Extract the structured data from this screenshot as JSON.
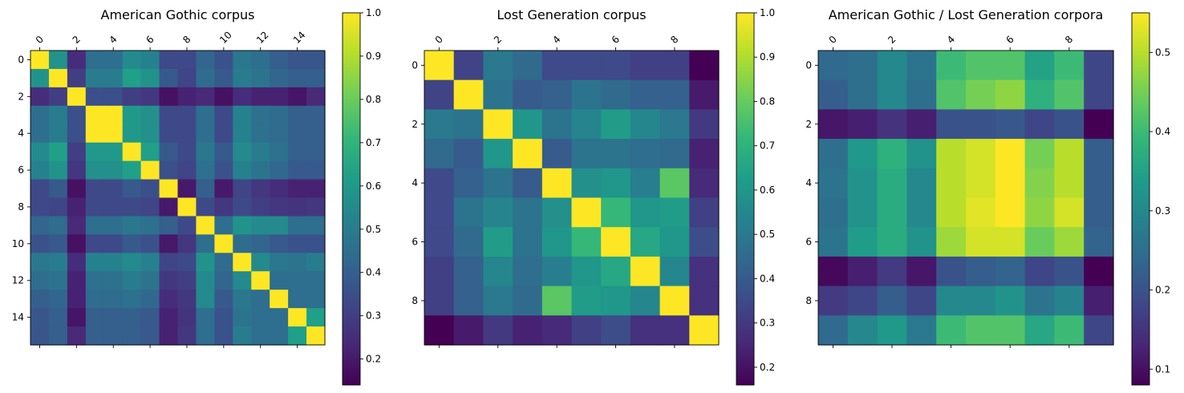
{
  "chart_data": [
    {
      "type": "heatmap",
      "title": "American Gothic corpus",
      "size": 16,
      "x_ticks": [
        0,
        2,
        4,
        6,
        8,
        10,
        12,
        14
      ],
      "y_ticks": [
        0,
        2,
        4,
        6,
        8,
        10,
        12,
        14
      ],
      "x_tick_labels": [
        "0",
        "2",
        "4",
        "6",
        "8",
        "10",
        "12",
        "14"
      ],
      "y_tick_labels": [
        "0",
        "2",
        "4",
        "6",
        "8",
        "10",
        "12",
        "14"
      ],
      "colorbar": {
        "min": 0.14,
        "max": 1.0,
        "ticks": [
          0.2,
          0.3,
          0.4,
          0.5,
          0.6,
          0.7,
          0.8,
          0.9,
          1.0
        ],
        "tick_labels": [
          "0.2",
          "0.3",
          "0.4",
          "0.5",
          "0.6",
          "0.7",
          "0.8",
          "0.9",
          "1.0"
        ]
      },
      "colormap": "viridis",
      "matrix": [
        [
          1.0,
          0.58,
          0.25,
          0.45,
          0.45,
          0.55,
          0.52,
          0.33,
          0.33,
          0.42,
          0.36,
          0.48,
          0.45,
          0.4,
          0.37,
          0.37
        ],
        [
          0.58,
          1.0,
          0.3,
          0.5,
          0.5,
          0.62,
          0.58,
          0.38,
          0.32,
          0.44,
          0.38,
          0.5,
          0.47,
          0.42,
          0.4,
          0.4
        ],
        [
          0.25,
          0.3,
          1.0,
          0.35,
          0.35,
          0.3,
          0.28,
          0.18,
          0.22,
          0.24,
          0.18,
          0.25,
          0.22,
          0.22,
          0.19,
          0.24
        ],
        [
          0.45,
          0.5,
          0.35,
          1.0,
          1.0,
          0.6,
          0.57,
          0.33,
          0.33,
          0.45,
          0.33,
          0.52,
          0.46,
          0.44,
          0.4,
          0.4
        ],
        [
          0.45,
          0.5,
          0.35,
          1.0,
          1.0,
          0.6,
          0.57,
          0.33,
          0.33,
          0.45,
          0.33,
          0.52,
          0.46,
          0.44,
          0.4,
          0.4
        ],
        [
          0.55,
          0.62,
          0.3,
          0.6,
          0.6,
          1.0,
          0.62,
          0.38,
          0.33,
          0.48,
          0.38,
          0.55,
          0.5,
          0.46,
          0.4,
          0.4
        ],
        [
          0.52,
          0.58,
          0.28,
          0.57,
          0.57,
          0.62,
          1.0,
          0.35,
          0.32,
          0.46,
          0.36,
          0.52,
          0.47,
          0.43,
          0.38,
          0.38
        ],
        [
          0.33,
          0.38,
          0.18,
          0.33,
          0.33,
          0.38,
          0.35,
          1.0,
          0.2,
          0.4,
          0.2,
          0.32,
          0.28,
          0.25,
          0.22,
          0.22
        ],
        [
          0.33,
          0.32,
          0.22,
          0.33,
          0.33,
          0.33,
          0.32,
          0.2,
          1.0,
          0.33,
          0.28,
          0.33,
          0.3,
          0.28,
          0.27,
          0.28
        ],
        [
          0.42,
          0.44,
          0.24,
          0.45,
          0.45,
          0.48,
          0.46,
          0.4,
          0.33,
          1.0,
          0.45,
          0.58,
          0.55,
          0.55,
          0.45,
          0.45
        ],
        [
          0.36,
          0.38,
          0.18,
          0.33,
          0.33,
          0.38,
          0.36,
          0.2,
          0.28,
          0.45,
          1.0,
          0.44,
          0.42,
          0.38,
          0.36,
          0.36
        ],
        [
          0.48,
          0.5,
          0.25,
          0.52,
          0.52,
          0.55,
          0.52,
          0.32,
          0.33,
          0.58,
          0.44,
          1.0,
          0.55,
          0.48,
          0.47,
          0.5
        ],
        [
          0.45,
          0.47,
          0.22,
          0.46,
          0.46,
          0.5,
          0.47,
          0.28,
          0.3,
          0.55,
          0.42,
          0.55,
          1.0,
          0.45,
          0.45,
          0.45
        ],
        [
          0.4,
          0.42,
          0.22,
          0.44,
          0.44,
          0.46,
          0.43,
          0.25,
          0.28,
          0.55,
          0.38,
          0.48,
          0.45,
          1.0,
          0.45,
          0.45
        ],
        [
          0.37,
          0.4,
          0.19,
          0.4,
          0.4,
          0.4,
          0.38,
          0.22,
          0.27,
          0.45,
          0.36,
          0.47,
          0.45,
          0.45,
          1.0,
          0.62
        ],
        [
          0.37,
          0.4,
          0.24,
          0.4,
          0.4,
          0.4,
          0.38,
          0.22,
          0.28,
          0.45,
          0.36,
          0.5,
          0.45,
          0.45,
          0.62,
          1.0
        ]
      ]
    },
    {
      "type": "heatmap",
      "title": "Lost Generation corpus",
      "size": 10,
      "x_ticks": [
        0,
        2,
        4,
        6,
        8
      ],
      "y_ticks": [
        0,
        2,
        4,
        6,
        8
      ],
      "x_tick_labels": [
        "0",
        "2",
        "4",
        "6",
        "8"
      ],
      "y_tick_labels": [
        "0",
        "2",
        "4",
        "6",
        "8"
      ],
      "colorbar": {
        "min": 0.16,
        "max": 1.0,
        "ticks": [
          0.2,
          0.3,
          0.4,
          0.5,
          0.6,
          0.7,
          0.8,
          0.9,
          1.0
        ],
        "tick_labels": [
          "0.2",
          "0.3",
          "0.4",
          "0.5",
          "0.6",
          "0.7",
          "0.8",
          "0.9",
          "1.0"
        ]
      },
      "colormap": "viridis",
      "matrix": [
        [
          1.0,
          0.33,
          0.5,
          0.45,
          0.35,
          0.35,
          0.35,
          0.32,
          0.32,
          0.16
        ],
        [
          0.33,
          1.0,
          0.48,
          0.4,
          0.42,
          0.48,
          0.45,
          0.42,
          0.42,
          0.22
        ],
        [
          0.5,
          0.48,
          1.0,
          0.6,
          0.48,
          0.54,
          0.62,
          0.55,
          0.5,
          0.3
        ],
        [
          0.45,
          0.4,
          0.6,
          1.0,
          0.4,
          0.48,
          0.48,
          0.46,
          0.45,
          0.24
        ],
        [
          0.35,
          0.42,
          0.48,
          0.4,
          1.0,
          0.58,
          0.6,
          0.52,
          0.78,
          0.26
        ],
        [
          0.35,
          0.48,
          0.54,
          0.48,
          0.58,
          1.0,
          0.72,
          0.6,
          0.62,
          0.32
        ],
        [
          0.35,
          0.45,
          0.62,
          0.48,
          0.6,
          0.72,
          1.0,
          0.66,
          0.6,
          0.36
        ],
        [
          0.32,
          0.42,
          0.55,
          0.46,
          0.52,
          0.6,
          0.66,
          1.0,
          0.55,
          0.28
        ],
        [
          0.32,
          0.42,
          0.5,
          0.45,
          0.78,
          0.62,
          0.6,
          0.55,
          1.0,
          0.28
        ],
        [
          0.16,
          0.22,
          0.3,
          0.24,
          0.26,
          0.32,
          0.36,
          0.28,
          0.28,
          1.0
        ]
      ]
    },
    {
      "type": "heatmap",
      "title": "American Gothic / Lost Generation corpora",
      "size_rows": 10,
      "size_cols": 10,
      "x_ticks": [
        0,
        2,
        4,
        6,
        8
      ],
      "y_ticks": [
        0,
        2,
        4,
        6,
        8
      ],
      "x_tick_labels": [
        "0",
        "2",
        "4",
        "6",
        "8"
      ],
      "y_tick_labels": [
        "0",
        "2",
        "4",
        "6",
        "8"
      ],
      "colorbar": {
        "min": 0.08,
        "max": 0.55,
        "ticks": [
          0.1,
          0.2,
          0.3,
          0.4,
          0.5
        ],
        "tick_labels": [
          "0.1",
          "0.2",
          "0.3",
          "0.4",
          "0.5"
        ]
      },
      "colormap": "viridis",
      "matrix": [
        [
          0.24,
          0.25,
          0.3,
          0.26,
          0.4,
          0.42,
          0.42,
          0.35,
          0.4,
          0.18
        ],
        [
          0.22,
          0.25,
          0.3,
          0.25,
          0.42,
          0.45,
          0.47,
          0.38,
          0.42,
          0.18
        ],
        [
          0.11,
          0.12,
          0.15,
          0.12,
          0.2,
          0.2,
          0.21,
          0.18,
          0.2,
          0.08
        ],
        [
          0.25,
          0.33,
          0.38,
          0.32,
          0.5,
          0.52,
          0.55,
          0.45,
          0.5,
          0.22
        ],
        [
          0.26,
          0.32,
          0.37,
          0.3,
          0.5,
          0.52,
          0.55,
          0.46,
          0.5,
          0.22
        ],
        [
          0.25,
          0.32,
          0.37,
          0.3,
          0.5,
          0.53,
          0.55,
          0.47,
          0.52,
          0.22
        ],
        [
          0.26,
          0.34,
          0.37,
          0.32,
          0.48,
          0.52,
          0.52,
          0.44,
          0.48,
          0.23
        ],
        [
          0.09,
          0.12,
          0.16,
          0.11,
          0.2,
          0.22,
          0.23,
          0.18,
          0.2,
          0.08
        ],
        [
          0.16,
          0.18,
          0.22,
          0.18,
          0.3,
          0.3,
          0.32,
          0.26,
          0.29,
          0.12
        ],
        [
          0.24,
          0.3,
          0.33,
          0.27,
          0.4,
          0.42,
          0.42,
          0.36,
          0.4,
          0.18
        ]
      ]
    }
  ]
}
